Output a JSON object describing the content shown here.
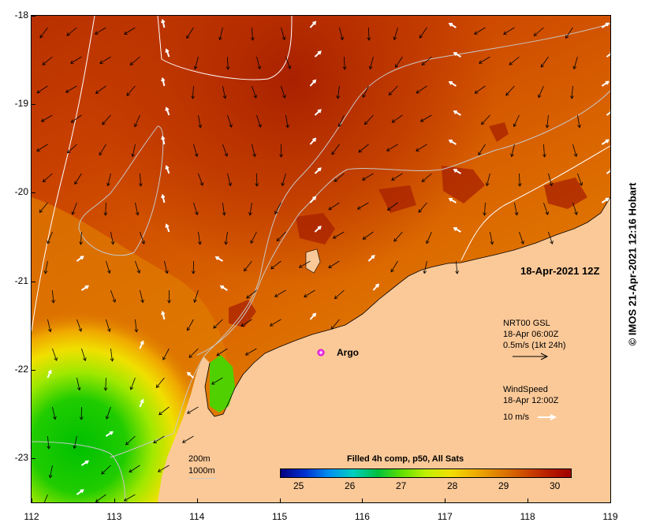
{
  "map": {
    "lon_ticks": [
      "112",
      "113",
      "114",
      "115",
      "116",
      "117",
      "118",
      "119"
    ],
    "lat_ticks": [
      "-18",
      "-19",
      "-20",
      "-21",
      "-22",
      "-23"
    ],
    "lon_range": [
      112,
      119
    ],
    "lat_range": [
      -18,
      -23.5
    ]
  },
  "timestamp": "18-Apr-2021 12Z",
  "argo_label": "Argo",
  "legend": {
    "gsl_title": "NRT00 GSL",
    "gsl_time": "18-Apr 06:00Z",
    "gsl_scale": "0.5m/s (1kt 24h)",
    "wind_title": "WindSpeed",
    "wind_time": "18-Apr 12:00Z",
    "wind_scale": "10 m/s"
  },
  "bathy": {
    "contour1": "200m",
    "contour2": "1000m"
  },
  "colorbar": {
    "title": "Filled 4h comp, p50, All Sats",
    "ticks": [
      "25",
      "26",
      "27",
      "28",
      "29",
      "30"
    ],
    "colors": [
      "#000080",
      "#0030d0",
      "#0090f0",
      "#00d0c0",
      "#00c040",
      "#60e000",
      "#c0f000",
      "#f0e000",
      "#f0b000",
      "#e08000",
      "#d05000",
      "#b82000",
      "#a00000"
    ]
  },
  "credit": "© IMOS 21-Apr-2021 12:16 Hobart",
  "colors": {
    "land": "#fbc998",
    "sst_hot": "#b03000",
    "sst_warm": "#d86000",
    "sst_cool": "#00c800"
  }
}
